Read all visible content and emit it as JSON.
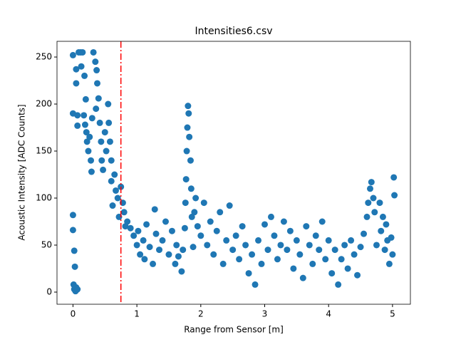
{
  "chart_data": {
    "type": "scatter",
    "title": "Intensities6.csv",
    "x_label": "Range from Sensor [m]",
    "y_label": "Acoustic Intensity [ADC Counts]",
    "xlim": [
      -0.25,
      5.28
    ],
    "ylim": [
      -12.9,
      266.7
    ],
    "xticks": [
      0,
      1,
      2,
      3,
      4,
      5
    ],
    "yticks": [
      0,
      50,
      100,
      150,
      200,
      250
    ],
    "color": "#1f77b4",
    "vline": 0.75,
    "vline_color": "#ff0000",
    "x": [
      0.0,
      0.0,
      0.02,
      0.03,
      0.01,
      0.02,
      0.04,
      0.05,
      0.07,
      0.0,
      0.0,
      0.05,
      0.05,
      0.07,
      0.07,
      0.09,
      0.12,
      0.15,
      0.13,
      0.18,
      0.2,
      0.17,
      0.19,
      0.21,
      0.22,
      0.24,
      0.26,
      0.28,
      0.29,
      0.3,
      0.32,
      0.35,
      0.37,
      0.38,
      0.36,
      0.4,
      0.42,
      0.44,
      0.45,
      0.47,
      0.5,
      0.52,
      0.55,
      0.56,
      0.58,
      0.6,
      0.6,
      0.62,
      0.65,
      0.67,
      0.7,
      0.72,
      0.75,
      0.78,
      0.8,
      0.82,
      0.85,
      0.9,
      0.95,
      1.0,
      1.02,
      1.05,
      1.1,
      1.12,
      1.15,
      1.2,
      1.25,
      1.28,
      1.3,
      1.35,
      1.4,
      1.45,
      1.5,
      1.55,
      1.6,
      1.62,
      1.65,
      1.7,
      1.72,
      1.75,
      1.76,
      1.77,
      1.78,
      1.79,
      1.8,
      1.81,
      1.82,
      1.84,
      1.85,
      1.86,
      1.88,
      1.9,
      1.92,
      1.95,
      2.0,
      2.05,
      2.1,
      2.15,
      2.2,
      2.25,
      2.3,
      2.35,
      2.4,
      2.45,
      2.5,
      2.55,
      2.6,
      2.65,
      2.7,
      2.75,
      2.8,
      2.85,
      2.9,
      2.95,
      3.0,
      3.05,
      3.1,
      3.15,
      3.2,
      3.25,
      3.3,
      3.35,
      3.4,
      3.45,
      3.5,
      3.55,
      3.6,
      3.65,
      3.7,
      3.75,
      3.8,
      3.85,
      3.9,
      3.95,
      4.0,
      4.05,
      4.1,
      4.15,
      4.2,
      4.25,
      4.3,
      4.35,
      4.4,
      4.45,
      4.5,
      4.55,
      4.6,
      4.62,
      4.65,
      4.67,
      4.7,
      4.72,
      4.75,
      4.8,
      4.82,
      4.85,
      4.88,
      4.9,
      4.92,
      4.95,
      4.98,
      5.02,
      5.03,
      5.0
    ],
    "y": [
      82,
      66,
      44,
      27,
      8,
      3,
      1,
      5,
      3,
      252,
      190,
      237,
      222,
      188,
      177,
      255,
      255,
      255,
      240,
      230,
      205,
      188,
      178,
      170,
      160,
      150,
      165,
      140,
      128,
      185,
      255,
      245,
      236,
      222,
      195,
      206,
      180,
      160,
      140,
      130,
      170,
      150,
      200,
      180,
      160,
      140,
      118,
      92,
      125,
      108,
      100,
      80,
      112,
      95,
      85,
      70,
      75,
      68,
      60,
      50,
      65,
      40,
      55,
      35,
      72,
      48,
      30,
      88,
      62,
      45,
      55,
      75,
      40,
      65,
      30,
      50,
      38,
      22,
      45,
      68,
      95,
      120,
      150,
      175,
      198,
      190,
      165,
      140,
      110,
      80,
      48,
      85,
      100,
      70,
      60,
      95,
      50,
      75,
      40,
      65,
      85,
      30,
      55,
      92,
      45,
      60,
      35,
      70,
      50,
      20,
      40,
      8,
      55,
      30,
      72,
      45,
      80,
      60,
      35,
      50,
      75,
      45,
      65,
      25,
      55,
      40,
      15,
      70,
      50,
      30,
      60,
      45,
      75,
      35,
      55,
      20,
      45,
      8,
      35,
      50,
      25,
      55,
      40,
      18,
      48,
      62,
      80,
      95,
      110,
      117,
      100,
      85,
      50,
      95,
      65,
      80,
      45,
      72,
      55,
      30,
      58,
      122,
      103,
      40
    ]
  }
}
